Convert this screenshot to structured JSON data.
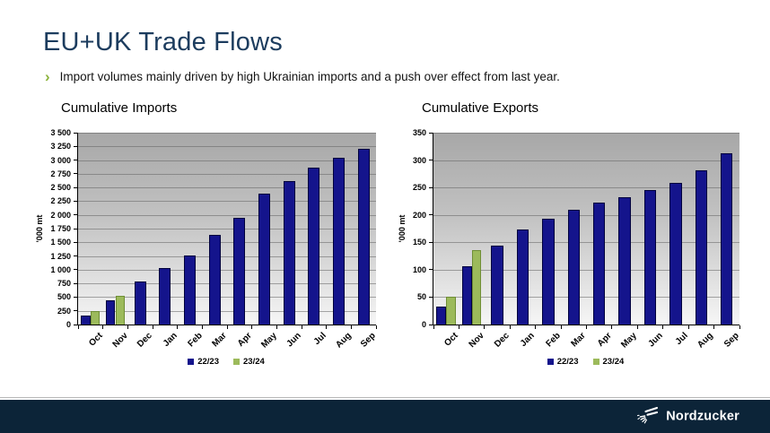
{
  "slide": {
    "title": "EU+UK Trade Flows",
    "bullet": {
      "marker": "›",
      "text": "Import volumes mainly driven by high Ukrainian imports and a push over effect from last year."
    },
    "footer": {
      "brand": "Nordzucker"
    }
  },
  "colors": {
    "title_navy": "#1c3c5e",
    "accent_green": "#8cb33c",
    "bar_navy": "#14148c",
    "bar_navy_border": "#00003c",
    "bar_green": "#9cba5b",
    "bar_green_border": "#6f8e35",
    "footer_bg": "#0c2438",
    "plot_gradient_top": "#a7a7a7",
    "plot_gradient_bottom": "#f6f6f6"
  },
  "chart_data": [
    {
      "type": "bar",
      "title": "Cumulative Imports",
      "ylabel": "'000 mt",
      "xlabel": "",
      "ylim": [
        0,
        3500
      ],
      "grid": true,
      "legend_position": "bottom",
      "yticks": [
        0,
        250,
        500,
        750,
        1000,
        1250,
        1500,
        1750,
        2000,
        2250,
        2500,
        2750,
        3000,
        3250,
        3500
      ],
      "ytick_labels": [
        "0",
        "250",
        "500",
        "750",
        "1 000",
        "1 250",
        "1 500",
        "1 750",
        "2 000",
        "2 250",
        "2 500",
        "2 750",
        "3 000",
        "3 250",
        "3 500"
      ],
      "categories": [
        "Oct",
        "Nov",
        "Dec",
        "Jan",
        "Feb",
        "Mar",
        "Apr",
        "May",
        "Jun",
        "Jul",
        "Aug",
        "Sep"
      ],
      "series": [
        {
          "name": "22/23",
          "color_key": "bar_navy",
          "border_key": "bar_navy_border",
          "values": [
            165,
            445,
            780,
            1030,
            1265,
            1640,
            1950,
            2380,
            2620,
            2860,
            3040,
            3200
          ]
        },
        {
          "name": "23/24",
          "color_key": "bar_green",
          "border_key": "bar_green_border",
          "values": [
            240,
            530,
            null,
            null,
            null,
            null,
            null,
            null,
            null,
            null,
            null,
            null
          ]
        }
      ]
    },
    {
      "type": "bar",
      "title": "Cumulative Exports",
      "ylabel": "'000 mt",
      "xlabel": "",
      "ylim": [
        0,
        350
      ],
      "grid": true,
      "legend_position": "bottom",
      "yticks": [
        0,
        50,
        100,
        150,
        200,
        250,
        300,
        350
      ],
      "ytick_labels": [
        "0",
        "50",
        "100",
        "150",
        "200",
        "250",
        "300",
        "350"
      ],
      "categories": [
        "Oct",
        "Nov",
        "Dec",
        "Jan",
        "Feb",
        "Mar",
        "Apr",
        "May",
        "Jun",
        "Jul",
        "Aug",
        "Sep"
      ],
      "series": [
        {
          "name": "22/23",
          "color_key": "bar_navy",
          "border_key": "bar_navy_border",
          "values": [
            33,
            106,
            144,
            174,
            193,
            210,
            223,
            233,
            245,
            259,
            282,
            312
          ]
        },
        {
          "name": "23/24",
          "color_key": "bar_green",
          "border_key": "bar_green_border",
          "values": [
            51,
            136,
            null,
            null,
            null,
            null,
            null,
            null,
            null,
            null,
            null,
            null
          ]
        }
      ]
    }
  ]
}
